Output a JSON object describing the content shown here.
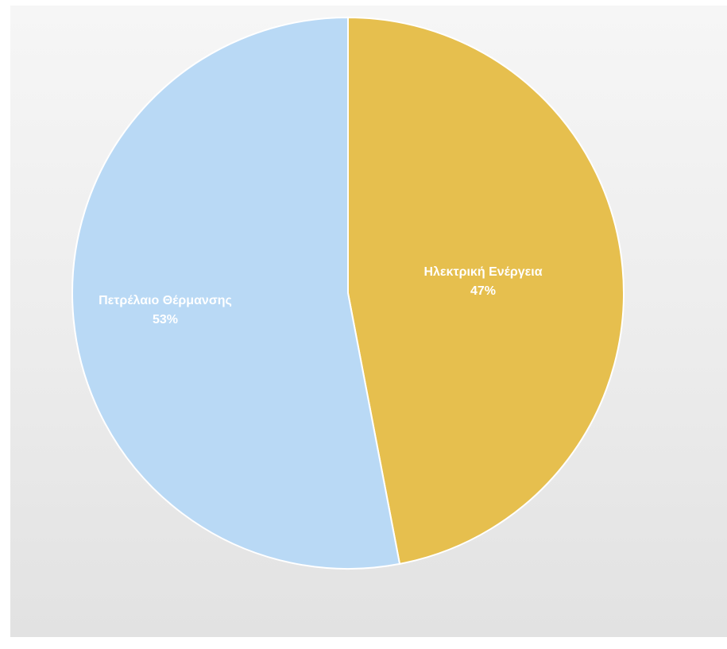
{
  "chart_data": {
    "type": "pie",
    "title": "",
    "slices": [
      {
        "label": "Ηλεκτρική Ενέργεια",
        "value": 47,
        "value_text": "47%",
        "color": "#e6bf4e"
      },
      {
        "label": "Πετρέλαιο Θέρμανσης",
        "value": 53,
        "value_text": "53%",
        "color": "#b9d9f5"
      }
    ],
    "start_angle": "12 o'clock",
    "direction": "clockwise",
    "slice_border_color": "#ffffff",
    "legend": "none"
  }
}
